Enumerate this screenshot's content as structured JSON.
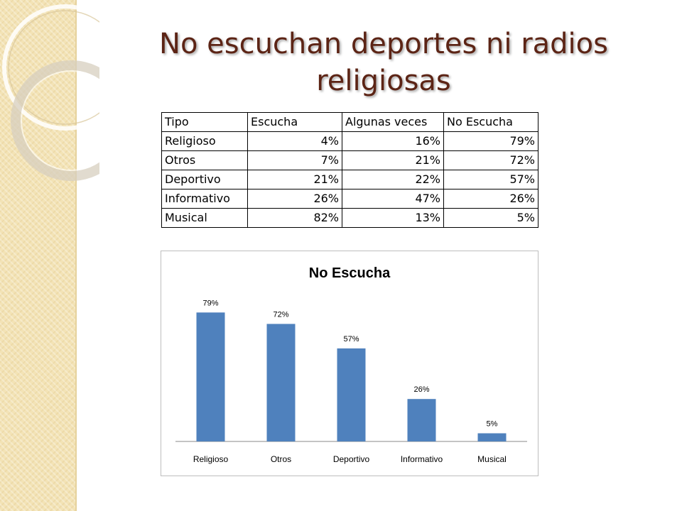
{
  "slide": {
    "title": "No escuchan deportes ni radios religiosas",
    "accent_color": "#5c2415",
    "sidebar_color": "#f3e3b6"
  },
  "table": {
    "headers": [
      "Tipo",
      "Escucha",
      "Algunas veces",
      "No Escucha"
    ],
    "rows": [
      [
        "Religioso",
        "4%",
        "16%",
        "79%"
      ],
      [
        "Otros",
        "7%",
        "21%",
        "72%"
      ],
      [
        "Deportivo",
        "21%",
        "22%",
        "57%"
      ],
      [
        "Informativo",
        "26%",
        "47%",
        "26%"
      ],
      [
        "Musical",
        "82%",
        "13%",
        "5%"
      ]
    ]
  },
  "chart_data": {
    "type": "bar",
    "title": "No Escucha",
    "categories": [
      "Religioso",
      "Otros",
      "Deportivo",
      "Informativo",
      "Musical"
    ],
    "values": [
      79,
      72,
      57,
      26,
      5
    ],
    "data_labels": [
      "79%",
      "72%",
      "57%",
      "26%",
      "5%"
    ],
    "ylim": [
      0,
      85
    ],
    "grid": false,
    "legend": "none",
    "bar_color": "#4f81bd"
  }
}
